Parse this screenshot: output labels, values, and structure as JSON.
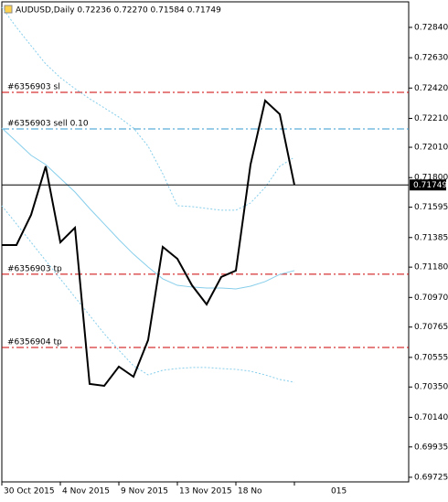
{
  "chart_data": {
    "type": "line",
    "title": "AUDUSD,Daily  0.72236 0.72270 0.71584 0.71749",
    "categories": [
      "30 Oct 2015",
      null,
      null,
      null,
      "4 Nov 2015",
      null,
      null,
      null,
      "9 Nov 2015",
      null,
      null,
      null,
      "13 Nov 2015",
      null,
      null,
      null,
      "18 No",
      null,
      null,
      null,
      null
    ],
    "truncated_axis_label": "015",
    "series": [
      {
        "name": "upper-band",
        "color": "#87ceeb",
        "dashed": true,
        "width": 1,
        "values": [
          0.72979,
          0.7284,
          0.72713,
          0.72587,
          0.72492,
          0.72416,
          0.72346,
          0.72283,
          0.72219,
          0.72143,
          0.72017,
          0.71827,
          0.71605,
          0.71599,
          0.71586,
          0.71574,
          0.71574,
          0.71624,
          0.71732,
          0.71878,
          0.71941
        ]
      },
      {
        "name": "middle-band",
        "color": "#87ceeb",
        "dashed": false,
        "width": 1,
        "values": [
          0.72143,
          0.72049,
          0.71954,
          0.7189,
          0.71795,
          0.717,
          0.71586,
          0.71479,
          0.71371,
          0.7127,
          0.71181,
          0.71099,
          0.71054,
          0.71042,
          0.71035,
          0.71035,
          0.71029,
          0.71048,
          0.7108,
          0.7113,
          0.71156
        ]
      },
      {
        "name": "lower-band",
        "color": "#87ceeb",
        "dashed": true,
        "width": 1,
        "values": [
          0.71605,
          0.71479,
          0.71352,
          0.71225,
          0.71099,
          0.70972,
          0.70846,
          0.70719,
          0.70605,
          0.70497,
          0.70434,
          0.70466,
          0.70478,
          0.70485,
          0.70485,
          0.70478,
          0.70472,
          0.70459,
          0.70434,
          0.70402,
          0.70383
        ]
      },
      {
        "name": "close",
        "color": "#000000",
        "dashed": false,
        "width": 2,
        "values": [
          0.71333,
          0.71333,
          0.71542,
          0.71878,
          0.71352,
          0.71453,
          0.70371,
          0.70358,
          0.70491,
          0.70421,
          0.70675,
          0.7132,
          0.71238,
          0.71054,
          0.70922,
          0.71112,
          0.71156,
          0.7189,
          0.72333,
          0.72239,
          0.71749
        ]
      }
    ],
    "current_price": 0.71749,
    "levels": [
      {
        "label": "#6356903 sl",
        "value": 0.7239,
        "color": "#cc0000"
      },
      {
        "label": "#6356903 sell 0.10",
        "value": 0.72137,
        "color": "#3399cc"
      },
      {
        "label": "#6356903 tp",
        "value": 0.71131,
        "color": "#cc0000"
      },
      {
        "label": "#6356904 tp",
        "value": 0.70624,
        "color": "#cc0000"
      }
    ],
    "ylim": [
      0.69693,
      0.73017
    ],
    "yticks": [
      {
        "value": 0.7284,
        "label": "0.72840"
      },
      {
        "value": 0.7263,
        "label": "0.72630"
      },
      {
        "value": 0.7242,
        "label": "0.72420"
      },
      {
        "value": 0.7221,
        "label": "0.72210"
      },
      {
        "value": 0.7201,
        "label": "0.72010"
      },
      {
        "value": 0.718,
        "label": "0.71800"
      },
      {
        "value": 0.71595,
        "label": "0.71595"
      },
      {
        "value": 0.71385,
        "label": "0.71385"
      },
      {
        "value": 0.7118,
        "label": "0.71180"
      },
      {
        "value": 0.7097,
        "label": "0.70970"
      },
      {
        "value": 0.70765,
        "label": "0.70765"
      },
      {
        "value": 0.70555,
        "label": "0.70555"
      },
      {
        "value": 0.7035,
        "label": "0.70350"
      },
      {
        "value": 0.7014,
        "label": "0.70140"
      },
      {
        "value": 0.69935,
        "label": "0.69935"
      },
      {
        "value": 0.69725,
        "label": "0.69725"
      }
    ],
    "grid": false
  }
}
